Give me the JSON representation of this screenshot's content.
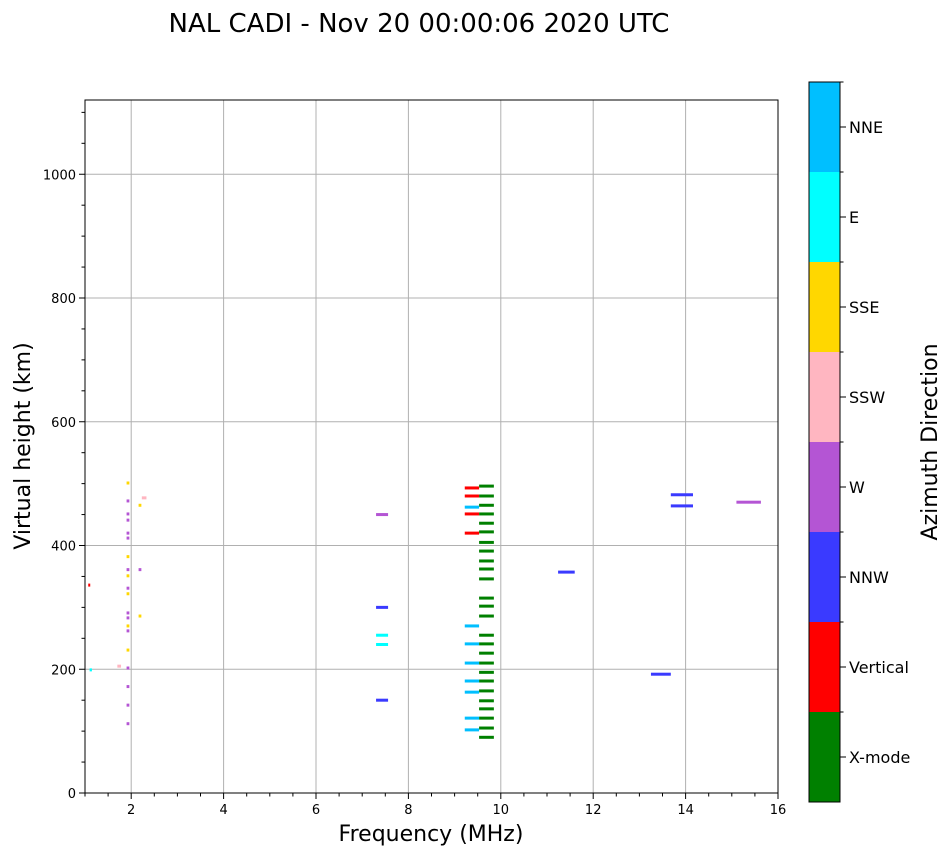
{
  "chart_data": {
    "type": "scatter",
    "title": "NAL CADI - Nov 20 00:00:06 2020 UTC",
    "xlabel": "Frequency (MHz)",
    "ylabel": "Virtual height (km)",
    "xlim": [
      1,
      16
    ],
    "ylim": [
      0,
      1120
    ],
    "xticks": [
      2,
      4,
      6,
      8,
      10,
      12,
      14,
      16
    ],
    "yticks": [
      0,
      200,
      400,
      600,
      800,
      1000
    ],
    "grid": true,
    "colorbar": {
      "label": "Azimuth Direction",
      "categories": [
        {
          "name": "X-mode",
          "color": "#008000"
        },
        {
          "name": "Vertical",
          "color": "#ff0000"
        },
        {
          "name": "NNW",
          "color": "#3a3aff"
        },
        {
          "name": "W",
          "color": "#b455d4"
        },
        {
          "name": "SSW",
          "color": "#ffb6c1"
        },
        {
          "name": "SSE",
          "color": "#ffd700"
        },
        {
          "name": "E",
          "color": "#00ffff"
        },
        {
          "name": "NNE",
          "color": "#00bfff"
        }
      ]
    },
    "series": [
      {
        "name": "X-mode",
        "f_start": 9.53,
        "f_end": 9.85,
        "heights": [
          496,
          480,
          465,
          451,
          436,
          422,
          405,
          391,
          375,
          362,
          346,
          315,
          302,
          286,
          255,
          241,
          226,
          210,
          195,
          181,
          165,
          149,
          136,
          121,
          105,
          90
        ]
      },
      {
        "name": "Vertical",
        "f_start": 9.22,
        "f_end": 9.53,
        "heights": [
          493,
          480,
          451,
          420
        ]
      },
      {
        "name": "Vertical",
        "f_start": 1.07,
        "f_end": 1.1,
        "heights": [
          336
        ]
      },
      {
        "name": "NNE",
        "f_start": 9.22,
        "f_end": 9.53,
        "heights": [
          462,
          270,
          241,
          210,
          181,
          163,
          121,
          102
        ]
      },
      {
        "name": "W",
        "f_start": 1.9,
        "f_end": 1.96,
        "heights": [
          472,
          451,
          441,
          420,
          412,
          361,
          331,
          291,
          283,
          262,
          202,
          172,
          142,
          112
        ]
      },
      {
        "name": "SSE",
        "f_start": 1.9,
        "f_end": 1.96,
        "heights": [
          501,
          382,
          351,
          322,
          270,
          231
        ]
      },
      {
        "name": "W",
        "f_start": 2.16,
        "f_end": 2.22,
        "heights": [
          361
        ]
      },
      {
        "name": "SSE",
        "f_start": 2.16,
        "f_end": 2.22,
        "heights": [
          465,
          286
        ]
      },
      {
        "name": "SSW",
        "f_start": 2.23,
        "f_end": 2.33,
        "heights": [
          477
        ]
      },
      {
        "name": "SSW",
        "f_start": 1.7,
        "f_end": 1.78,
        "heights": [
          205
        ]
      },
      {
        "name": "E",
        "f_start": 1.1,
        "f_end": 1.15,
        "heights": [
          199
        ]
      },
      {
        "name": "W",
        "f_start": 7.3,
        "f_end": 7.56,
        "heights": [
          450
        ]
      },
      {
        "name": "NNW",
        "f_start": 7.3,
        "f_end": 7.56,
        "heights": [
          300,
          150
        ]
      },
      {
        "name": "E",
        "f_start": 7.3,
        "f_end": 7.56,
        "heights": [
          255,
          240
        ]
      },
      {
        "name": "NNW",
        "f_start": 11.24,
        "f_end": 11.6,
        "heights": [
          357
        ]
      },
      {
        "name": "NNW",
        "f_start": 13.25,
        "f_end": 13.68,
        "heights": [
          192
        ]
      },
      {
        "name": "NNW",
        "f_start": 13.68,
        "f_end": 14.16,
        "heights": [
          482,
          464
        ]
      },
      {
        "name": "W",
        "f_start": 15.1,
        "f_end": 15.63,
        "heights": [
          470
        ]
      }
    ]
  }
}
